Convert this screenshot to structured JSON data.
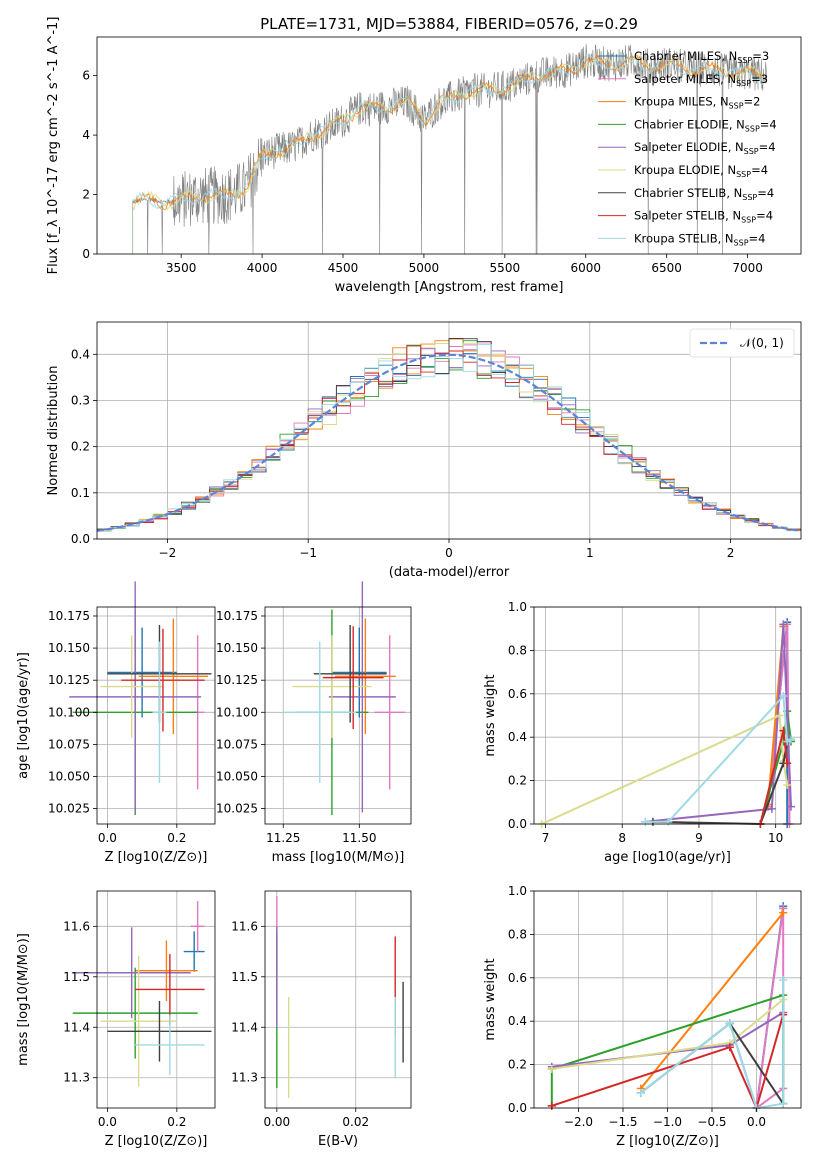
{
  "figure": {
    "title": "PLATE=1731, MJD=53884, FIBERID=0576, z=0.29"
  },
  "series_styles": [
    {
      "name": "Chabrier MILES",
      "nssp": "3",
      "color": "#1f77b4"
    },
    {
      "name": "Salpeter MILES",
      "nssp": "3",
      "color": "#e377c2"
    },
    {
      "name": "Kroupa MILES",
      "nssp": "2",
      "color": "#ff7f0e"
    },
    {
      "name": "Chabrier ELODIE",
      "nssp": "4",
      "color": "#2ca02c"
    },
    {
      "name": "Salpeter ELODIE",
      "nssp": "4",
      "color": "#9467bd"
    },
    {
      "name": "Kroupa ELODIE",
      "nssp": "4",
      "color": "#dbdb8d"
    },
    {
      "name": "Chabrier STELIB",
      "nssp": "4",
      "color": "#404040"
    },
    {
      "name": "Salpeter STELIB",
      "nssp": "4",
      "color": "#d62728"
    },
    {
      "name": "Kroupa STELIB",
      "nssp": "4",
      "color": "#9edae5"
    }
  ],
  "chart_data": [
    {
      "id": "spectrum",
      "type": "line",
      "xlabel": "wavelength [Angstrom, rest frame]",
      "ylabel": "Flux [f_λ 10^-17 erg cm^-2 s^-1 A^-1]",
      "xlim": [
        2980,
        7330
      ],
      "ylim": [
        0,
        7.3
      ],
      "xticks": [
        "3500",
        "4000",
        "4500",
        "5000",
        "5500",
        "6000",
        "6500",
        "7000"
      ],
      "yticks": [
        "0",
        "2",
        "4",
        "6"
      ],
      "grid": false,
      "legend": "right",
      "data_color": "#7f7f7f",
      "model_trend_x": [
        3200,
        3300,
        3400,
        3500,
        3600,
        3700,
        3800,
        3900,
        4000,
        4100,
        4200,
        4300,
        4400,
        4500,
        4600,
        4700,
        4800,
        4900,
        5000,
        5100,
        5200,
        5300,
        5400,
        5500,
        5600,
        5700,
        5800,
        5900,
        6000,
        6100,
        6200,
        6300,
        6400,
        6500,
        6600,
        6700,
        6800,
        6900,
        7000,
        7100
      ],
      "model_trend_y": [
        1.75,
        1.85,
        1.75,
        1.8,
        1.95,
        1.95,
        2.0,
        2.2,
        3.3,
        3.5,
        3.6,
        4.0,
        4.2,
        4.5,
        4.9,
        4.9,
        5.0,
        5.1,
        4.5,
        5.1,
        5.3,
        5.5,
        5.5,
        5.6,
        5.8,
        6.0,
        6.1,
        6.2,
        6.5,
        6.4,
        6.4,
        6.5,
        6.3,
        6.4,
        6.3,
        6.2,
        6.2,
        6.1,
        6.1,
        6.0
      ]
    },
    {
      "id": "residuals",
      "type": "line",
      "xlabel": "(data-model)/error",
      "ylabel": "Normed distribution",
      "xlim": [
        -2.5,
        2.5
      ],
      "ylim": [
        0,
        0.47
      ],
      "xticks": [
        "−2",
        "−1",
        "0",
        "1",
        "2"
      ],
      "yticks": [
        "0.0",
        "0.1",
        "0.2",
        "0.3",
        "0.4"
      ],
      "grid": true,
      "legend": "top-right",
      "legend_label": "𝒩(0, 1)",
      "gaussian": {
        "mean": 0,
        "sigma": 1,
        "color": "#5b84d4"
      },
      "bin_width": 0.1
    },
    {
      "id": "age_vs_Z",
      "type": "scatter",
      "xlabel": "Z [log10(Z/Z⊙)]",
      "ylabel": "age  [log10(age/yr)]",
      "xlim": [
        -0.03,
        0.31
      ],
      "ylim": [
        10.013,
        10.182
      ],
      "xticks": [
        "0.0",
        "0.2"
      ],
      "yticks": [
        "10.025",
        "10.050",
        "10.075",
        "10.100",
        "10.125",
        "10.150",
        "10.175"
      ],
      "grid": true,
      "points": [
        {
          "x": 0.1,
          "y": 10.131,
          "xerr": 0.1,
          "yerr": 0.035,
          "s": 0
        },
        {
          "x": 0.26,
          "y": 10.1,
          "xerr": 0.02,
          "yerr": 0.06,
          "s": 1
        },
        {
          "x": 0.19,
          "y": 10.128,
          "xerr": 0.1,
          "yerr": 0.045,
          "s": 2
        },
        {
          "x": 0.08,
          "y": 10.1,
          "xerr": 0.18,
          "yerr": 0.08,
          "s": 3
        },
        {
          "x": 0.08,
          "y": 10.112,
          "xerr": 0.19,
          "yerr": 0.09,
          "s": 4
        },
        {
          "x": 0.07,
          "y": 10.12,
          "xerr": 0.09,
          "yerr": 0.04,
          "s": 5
        },
        {
          "x": 0.15,
          "y": 10.13,
          "xerr": 0.15,
          "yerr": 0.038,
          "s": 6
        },
        {
          "x": 0.16,
          "y": 10.125,
          "xerr": 0.12,
          "yerr": 0.04,
          "s": 7
        },
        {
          "x": 0.15,
          "y": 10.1,
          "xerr": 0.02,
          "yerr": 0.055,
          "s": 8
        }
      ]
    },
    {
      "id": "age_vs_mass",
      "type": "scatter",
      "xlabel": "mass [log10(M/M⊙)]",
      "ylabel": "",
      "xlim": [
        11.19,
        11.67
      ],
      "ylim": [
        10.013,
        10.182
      ],
      "xticks": [
        "11.25",
        "11.50"
      ],
      "yticks": [
        "10.025",
        "10.050",
        "10.075",
        "10.100",
        "10.125",
        "10.150",
        "10.175"
      ],
      "grid": true,
      "points": [
        {
          "x": 11.5,
          "y": 10.131,
          "xerr": 0.09,
          "yerr": 0.035,
          "s": 0
        },
        {
          "x": 11.6,
          "y": 10.1,
          "xerr": 0.05,
          "yerr": 0.06,
          "s": 1
        },
        {
          "x": 11.52,
          "y": 10.128,
          "xerr": 0.1,
          "yerr": 0.045,
          "s": 2
        },
        {
          "x": 11.41,
          "y": 10.1,
          "xerr": 0.12,
          "yerr": 0.08,
          "s": 3
        },
        {
          "x": 11.51,
          "y": 10.112,
          "xerr": 0.11,
          "yerr": 0.09,
          "s": 4
        },
        {
          "x": 11.41,
          "y": 10.12,
          "xerr": 0.13,
          "yerr": 0.04,
          "s": 5
        },
        {
          "x": 11.47,
          "y": 10.13,
          "xerr": 0.12,
          "yerr": 0.038,
          "s": 6
        },
        {
          "x": 11.48,
          "y": 10.127,
          "xerr": 0.1,
          "yerr": 0.04,
          "s": 7
        },
        {
          "x": 11.37,
          "y": 10.1,
          "xerr": 0.12,
          "yerr": 0.055,
          "s": 8
        }
      ]
    },
    {
      "id": "weight_vs_age",
      "type": "line",
      "xlabel": "age  [log10(age/yr)]",
      "ylabel": "mass weight",
      "xlim": [
        6.85,
        10.33
      ],
      "ylim": [
        0,
        1.0
      ],
      "xticks": [
        "7",
        "8",
        "9",
        "10"
      ],
      "yticks": [
        "0.0",
        "0.2",
        "0.4",
        "0.6",
        "0.8",
        "1.0"
      ],
      "grid": true,
      "lines": [
        {
          "s": 0,
          "x": [
            9.9,
            10.15,
            10.15
          ],
          "y": [
            0.08,
            0.93,
            0.0
          ]
        },
        {
          "s": 1,
          "x": [
            9.9,
            10.15,
            10.18
          ],
          "y": [
            0.08,
            0.92,
            0.0
          ]
        },
        {
          "s": 2,
          "x": [
            9.9,
            10.1
          ],
          "y": [
            0.09,
            0.91
          ]
        },
        {
          "s": 3,
          "x": [
            9.8,
            10.1,
            10.15,
            10.2
          ],
          "y": [
            0.0,
            0.38,
            0.52,
            0.38
          ]
        },
        {
          "s": 4,
          "x": [
            8.3,
            9.95,
            10.1,
            10.2
          ],
          "y": [
            0.01,
            0.07,
            0.92,
            0.08
          ]
        },
        {
          "s": 5,
          "x": [
            6.95,
            10.05,
            10.1,
            10.15
          ],
          "y": [
            0.0,
            0.5,
            0.29,
            0.18
          ]
        },
        {
          "s": 6,
          "x": [
            8.4,
            9.8,
            10.1,
            10.15,
            10.2
          ],
          "y": [
            0.01,
            0.0,
            0.28,
            0.38,
            0.39
          ]
        },
        {
          "s": 7,
          "x": [
            9.8,
            10.1,
            10.15
          ],
          "y": [
            0.0,
            0.43,
            0.28
          ]
        },
        {
          "s": 8,
          "x": [
            8.3,
            8.6,
            10.1,
            10.15,
            10.2
          ],
          "y": [
            0.01,
            0.01,
            0.59,
            0.38,
            0.39
          ]
        }
      ]
    },
    {
      "id": "mass_vs_Z",
      "type": "scatter",
      "xlabel": "Z [log10(Z/Z⊙)]",
      "ylabel": "mass [log10(M/M⊙)]",
      "xlim": [
        -0.03,
        0.31
      ],
      "ylim": [
        11.24,
        11.67
      ],
      "xticks": [
        "0.0",
        "0.2"
      ],
      "yticks": [
        "11.3",
        "11.4",
        "11.5",
        "11.6"
      ],
      "grid": true,
      "points": [
        {
          "x": 0.25,
          "y": 11.55,
          "xerr": 0.03,
          "yerr": 0.04,
          "s": 0
        },
        {
          "x": 0.26,
          "y": 11.6,
          "xerr": 0.02,
          "yerr": 0.05,
          "s": 1
        },
        {
          "x": 0.17,
          "y": 11.512,
          "xerr": 0.09,
          "yerr": 0.06,
          "s": 2
        },
        {
          "x": 0.08,
          "y": 11.428,
          "xerr": 0.18,
          "yerr": 0.09,
          "s": 3
        },
        {
          "x": 0.07,
          "y": 11.508,
          "xerr": 0.17,
          "yerr": 0.09,
          "s": 4
        },
        {
          "x": 0.09,
          "y": 11.412,
          "xerr": 0.11,
          "yerr": 0.13,
          "s": 5
        },
        {
          "x": 0.15,
          "y": 11.392,
          "xerr": 0.15,
          "yerr": 0.06,
          "s": 6
        },
        {
          "x": 0.18,
          "y": 11.475,
          "xerr": 0.1,
          "yerr": 0.07,
          "s": 7
        },
        {
          "x": 0.18,
          "y": 11.365,
          "xerr": 0.1,
          "yerr": 0.06,
          "s": 8
        }
      ]
    },
    {
      "id": "mass_vs_ebv",
      "type": "scatter",
      "xlabel": "E(B-V)",
      "ylabel": "",
      "xlim": [
        -0.003,
        0.034
      ],
      "ylim": [
        11.24,
        11.67
      ],
      "xticks": [
        "0.00",
        "0.02"
      ],
      "yticks": [
        "11.3",
        "11.4",
        "11.5",
        "11.6"
      ],
      "grid": true,
      "points": [
        {
          "x": 0.0,
          "y": 11.55,
          "yerr": 0.04,
          "s": 0
        },
        {
          "x": 0.0,
          "y": 11.6,
          "yerr": 0.06,
          "s": 1
        },
        {
          "x": 0.0,
          "y": 11.51,
          "yerr": 0.06,
          "s": 2
        },
        {
          "x": 0.0,
          "y": 11.43,
          "yerr": 0.15,
          "s": 3
        },
        {
          "x": 0.0,
          "y": 11.5,
          "yerr": 0.1,
          "s": 4
        },
        {
          "x": 0.003,
          "y": 11.36,
          "yerr": 0.1,
          "s": 5
        },
        {
          "x": 0.032,
          "y": 11.41,
          "yerr": 0.08,
          "s": 6
        },
        {
          "x": 0.03,
          "y": 11.48,
          "yerr": 0.1,
          "s": 7
        },
        {
          "x": 0.03,
          "y": 11.38,
          "yerr": 0.08,
          "s": 8
        }
      ]
    },
    {
      "id": "weight_vs_Z",
      "type": "line",
      "xlabel": "Z [log10(Z/Z⊙)]",
      "ylabel": "mass weight",
      "xlim": [
        -2.5,
        0.5
      ],
      "ylim": [
        0,
        1.0
      ],
      "xticks": [
        "−2.0",
        "−1.5",
        "−1.0",
        "−0.5",
        "0.0"
      ],
      "yticks": [
        "0.0",
        "0.2",
        "0.4",
        "0.6",
        "0.8",
        "1.0"
      ],
      "grid": true,
      "lines": [
        {
          "s": 0,
          "x": [
            -0.3,
            0.0,
            0.3
          ],
          "y": [
            0.39,
            0.0,
            0.93
          ]
        },
        {
          "s": 1,
          "x": [
            0.3,
            0.3,
            0.0,
            0.3
          ],
          "y": [
            0.92,
            0.09,
            0.0,
            0.92
          ]
        },
        {
          "s": 2,
          "x": [
            -1.3,
            0.3
          ],
          "y": [
            0.09,
            0.9
          ]
        },
        {
          "s": 3,
          "x": [
            -2.3,
            -2.3,
            0.3,
            0.3
          ],
          "y": [
            0.01,
            0.18,
            0.52,
            0.02
          ]
        },
        {
          "s": 4,
          "x": [
            -2.3,
            -0.3,
            0.3
          ],
          "y": [
            0.19,
            0.29,
            0.44
          ]
        },
        {
          "s": 5,
          "x": [
            -2.3,
            -0.3,
            0.3
          ],
          "y": [
            0.18,
            0.3,
            0.5
          ]
        },
        {
          "s": 6,
          "x": [
            -1.3,
            -0.3,
            0.3
          ],
          "y": [
            0.07,
            0.39,
            0.02
          ]
        },
        {
          "s": 7,
          "x": [
            -2.3,
            -0.3,
            0.0,
            0.3
          ],
          "y": [
            0.01,
            0.28,
            0.0,
            0.43
          ]
        },
        {
          "s": 8,
          "x": [
            -1.3,
            -0.3,
            0.0,
            0.3,
            0.3
          ],
          "y": [
            0.07,
            0.39,
            0.0,
            0.02,
            0.59
          ]
        }
      ]
    }
  ]
}
